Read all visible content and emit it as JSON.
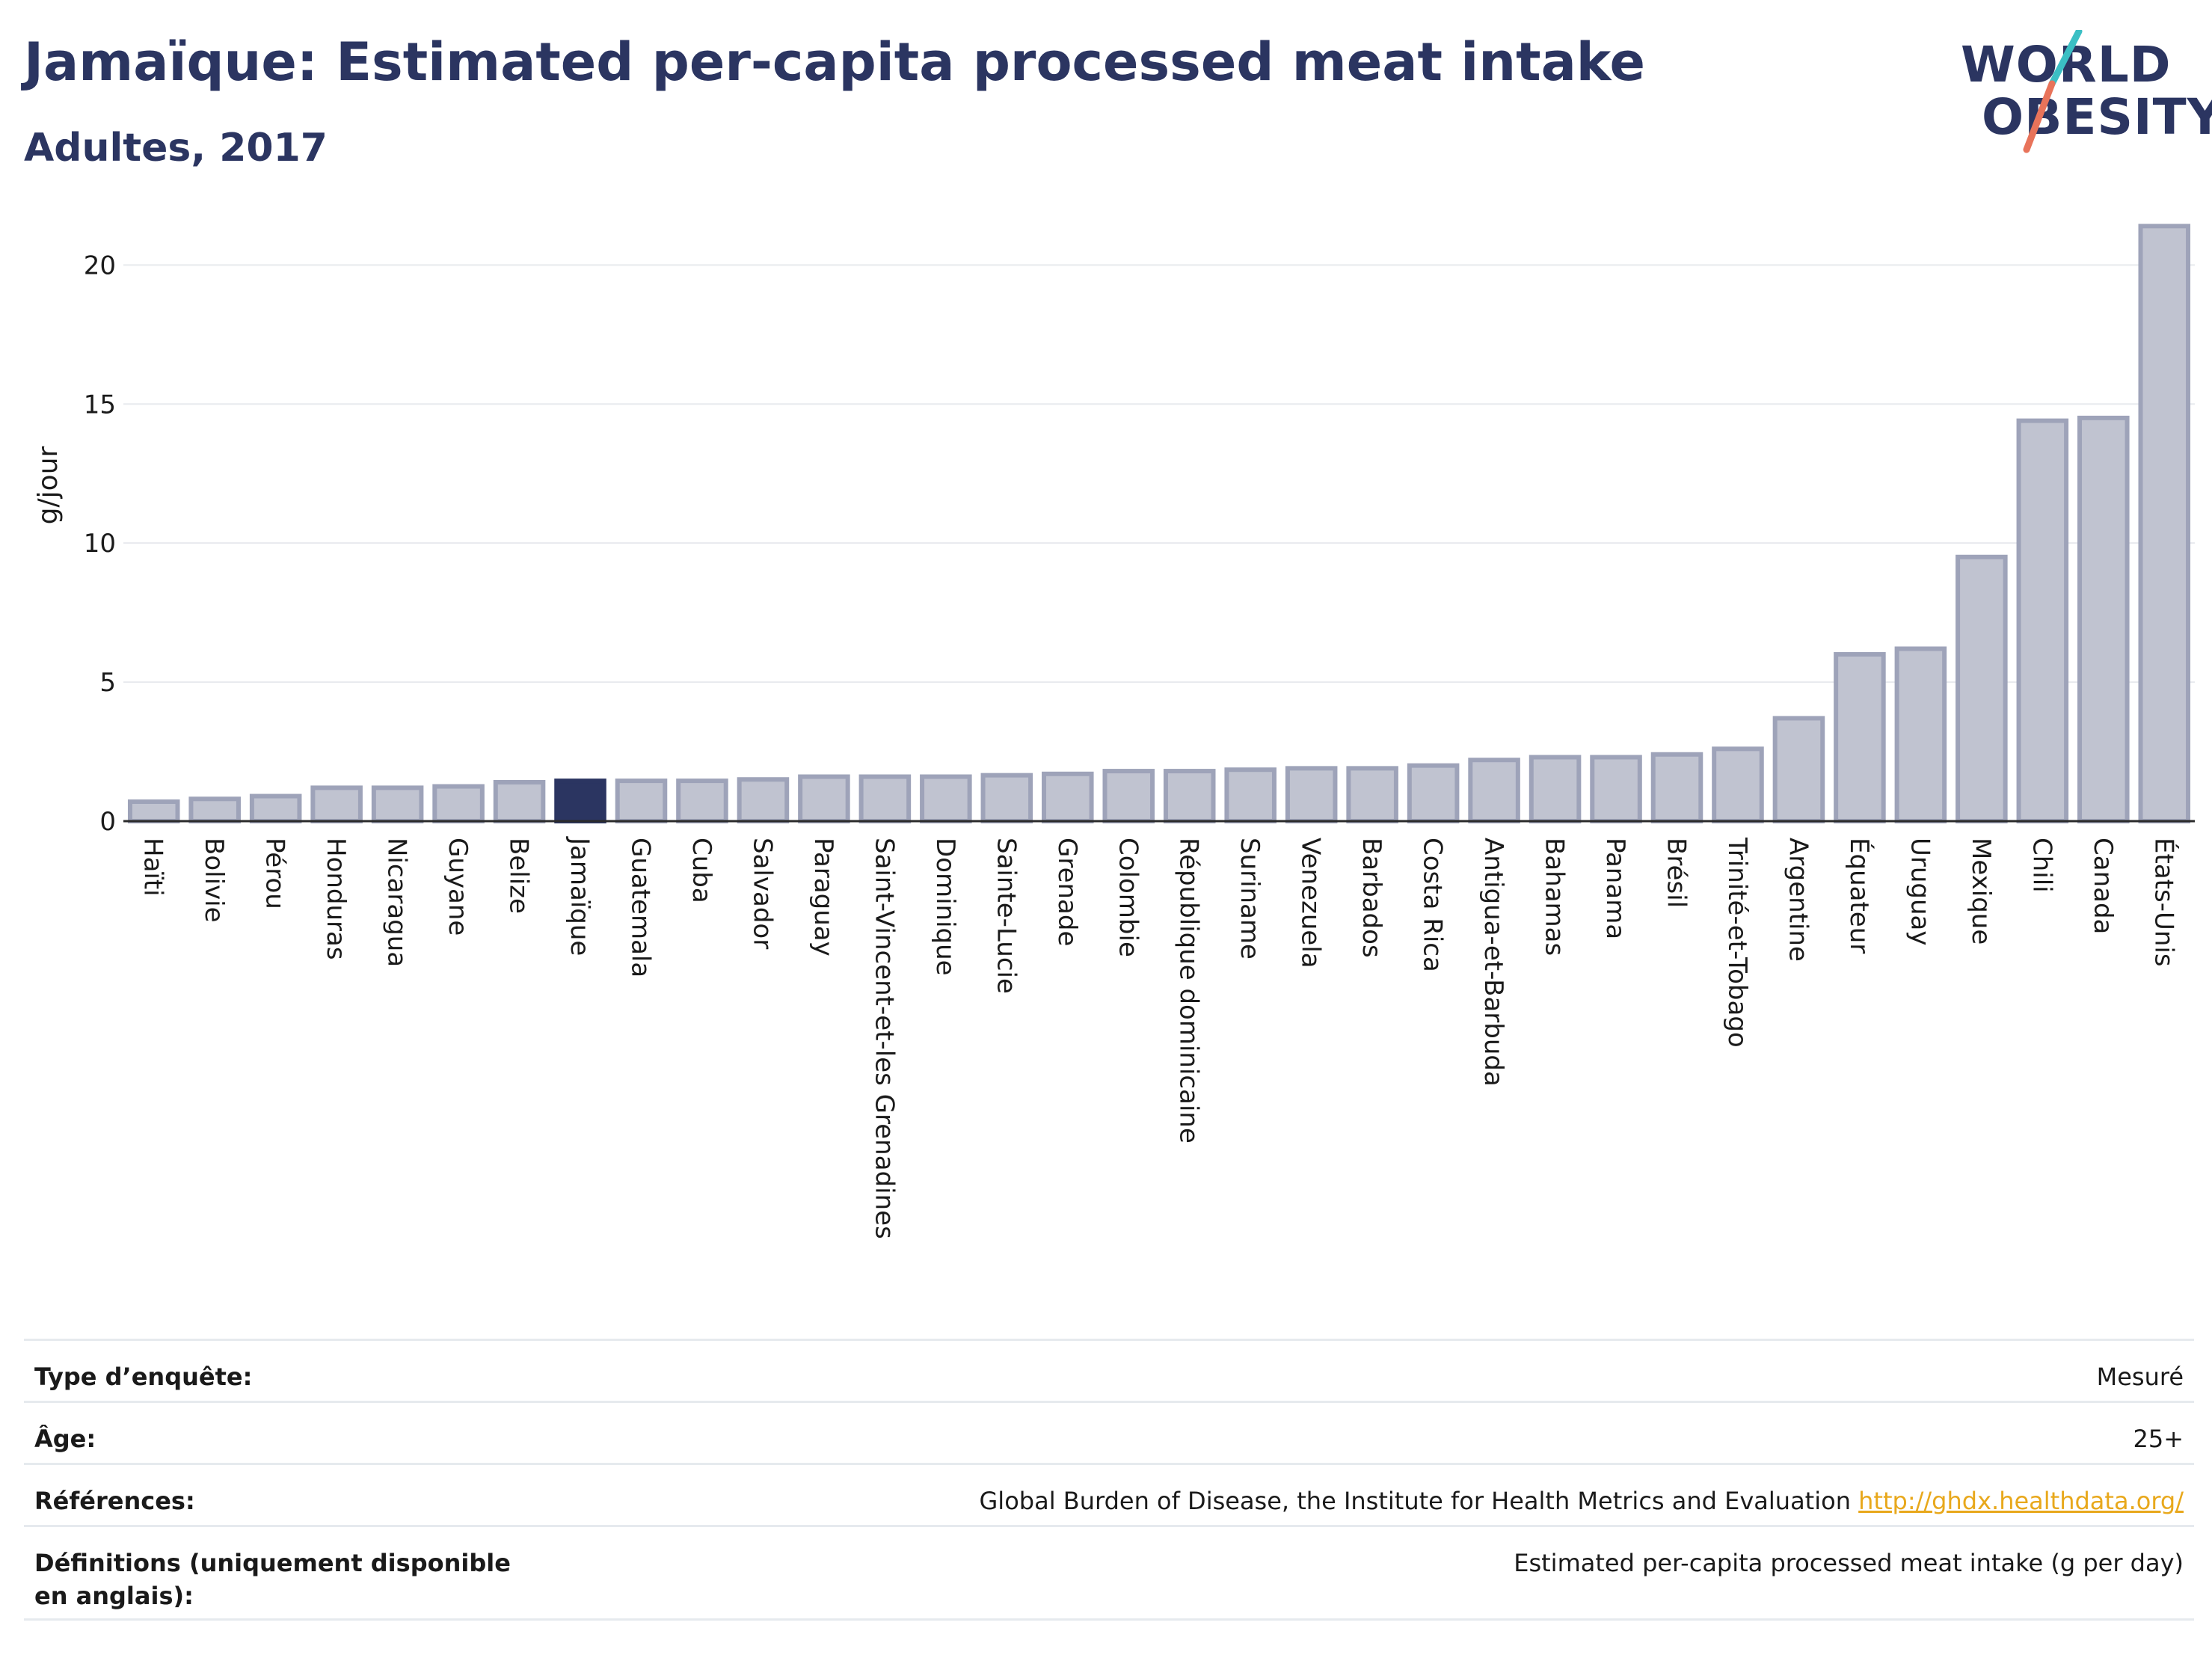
{
  "header": {
    "title": "Jamaïque: Estimated per-capita processed meat intake",
    "subtitle": "Adultes, 2017"
  },
  "logo": {
    "line1": "WORLD",
    "line2": "OBESITY",
    "accent_colors": [
      "#3bbfc4",
      "#e8735a"
    ]
  },
  "colors": {
    "brand": "#2b3561",
    "bar_fill": "#c0c3d0",
    "bar_stroke": "#9ea3b9",
    "highlight": "#2b3561",
    "link": "#e8a81c"
  },
  "chart_data": {
    "type": "bar",
    "ylabel": "g/jour",
    "ylim": [
      0,
      22
    ],
    "yticks": [
      0,
      5,
      10,
      15,
      20
    ],
    "grid": true,
    "highlight": "Jamaïque",
    "categories": [
      "Haïti",
      "Bolivie",
      "Pérou",
      "Honduras",
      "Nicaragua",
      "Guyane",
      "Belize",
      "Jamaïque",
      "Guatemala",
      "Cuba",
      "Salvador",
      "Paraguay",
      "Saint-Vincent-et-les Grenadines",
      "Dominique",
      "Sainte-Lucie",
      "Grenade",
      "Colombie",
      "République dominicaine",
      "Suriname",
      "Venezuela",
      "Barbados",
      "Costa Rica",
      "Antigua-et-Barbuda",
      "Bahamas",
      "Panama",
      "Brésil",
      "Trinité-et-Tobago",
      "Argentine",
      "Équateur",
      "Uruguay",
      "Mexique",
      "Chili",
      "Canada",
      "États-Unis"
    ],
    "values": [
      0.7,
      0.8,
      0.9,
      1.2,
      1.2,
      1.25,
      1.4,
      1.45,
      1.45,
      1.45,
      1.5,
      1.6,
      1.6,
      1.6,
      1.65,
      1.7,
      1.8,
      1.8,
      1.85,
      1.9,
      1.9,
      2.0,
      2.2,
      2.3,
      2.3,
      2.4,
      2.6,
      3.7,
      6.0,
      6.2,
      9.5,
      14.4,
      14.5,
      21.4
    ]
  },
  "meta": {
    "rows": [
      {
        "label": "Type d’enquête:",
        "value": "Mesuré"
      },
      {
        "label": "Âge:",
        "value": "25+"
      },
      {
        "label": "Références:",
        "value": "Global Burden of Disease, the Institute for Health Metrics and Evaluation",
        "link": "http://ghdx.healthdata.org/"
      },
      {
        "label": "Définitions (uniquement disponible en anglais):",
        "value": "Estimated per-capita processed meat intake (g per day)"
      }
    ]
  }
}
